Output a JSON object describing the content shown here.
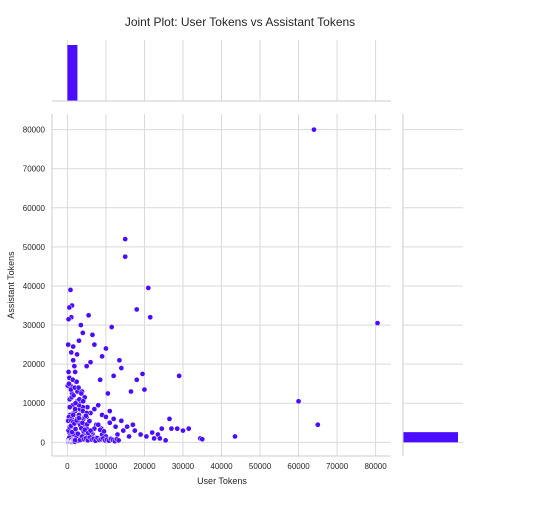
{
  "chart_data": {
    "type": "scatter",
    "title": "Joint Plot: User Tokens vs Assistant Tokens",
    "xlabel": "User Tokens",
    "ylabel": "Assistant Tokens",
    "xlim": [
      -4000,
      84000
    ],
    "ylim": [
      -3500,
      84000
    ],
    "x_ticks": [
      0,
      10000,
      20000,
      30000,
      40000,
      50000,
      60000,
      70000,
      80000
    ],
    "y_ticks": [
      0,
      10000,
      20000,
      30000,
      40000,
      50000,
      60000,
      70000,
      80000
    ],
    "x_tick_labels": [
      "0",
      "10000",
      "20000",
      "30000",
      "40000",
      "50000",
      "60000",
      "70000",
      "80000"
    ],
    "y_tick_labels": [
      "0",
      "10000",
      "20000",
      "30000",
      "40000",
      "50000",
      "60000",
      "70000",
      "80000"
    ],
    "grid": true,
    "point_color": "#4b0dff",
    "marginal_x": {
      "type": "histogram",
      "bin_edges": [
        0,
        2600
      ],
      "relative_height": 1.0
    },
    "marginal_y": {
      "type": "histogram",
      "bin_edges": [
        0,
        2600
      ],
      "relative_width": 1.0
    },
    "x": [
      64000,
      80500,
      15000,
      15000,
      21000,
      21500,
      18000,
      60000,
      65000,
      43500,
      29000,
      26500,
      30000,
      31500,
      34500,
      35000,
      28500,
      23500,
      24500,
      11500,
      20000,
      19500,
      18000,
      16500,
      10000,
      13500,
      14000,
      12000,
      10500,
      9000,
      8500,
      7000,
      6500,
      5500,
      6000,
      5000,
      4000,
      3500,
      3000,
      2500,
      2000,
      1500,
      1200,
      1000,
      800,
      500,
      300,
      200,
      1000,
      1500,
      1800,
      2200,
      500,
      800,
      1200,
      300,
      600,
      1400,
      2500,
      3200,
      4500,
      5200,
      3800,
      2800,
      1600,
      700,
      400,
      200,
      1100,
      2100,
      3300,
      4200,
      5800,
      7500,
      8800,
      9500,
      11000,
      12500,
      13000,
      14500,
      16000,
      17000,
      22000,
      24000,
      25500,
      27000,
      2000,
      3000,
      4000,
      5000,
      6000,
      7000,
      8000,
      9000,
      10000,
      11000,
      12000,
      14000,
      15500,
      17500,
      19000,
      20500,
      22500,
      1000,
      2000,
      3000,
      4000,
      5000,
      6000,
      7000,
      8000,
      9000,
      10000,
      500,
      1500,
      2500,
      3500,
      4500,
      5500,
      6500,
      7500,
      8500,
      9500,
      200,
      700,
      1200,
      1700,
      2200,
      2700,
      3200,
      3700,
      4200,
      4700,
      5200,
      5700,
      6200,
      6700,
      300,
      800,
      1300,
      1800,
      2300,
      2800,
      3300,
      3800,
      4300,
      4800,
      5300,
      5800,
      6300,
      6800,
      7300,
      7800,
      8300,
      8800,
      9300,
      9800,
      10300,
      10800,
      11300,
      11800,
      12300,
      12800,
      13300,
      500,
      1000,
      1500,
      2000,
      2500,
      3000,
      3500,
      4000,
      4500,
      5000,
      600,
      1100,
      1600,
      2100,
      2600,
      3100,
      3600,
      4100,
      100,
      400,
      900,
      1400,
      1900,
      2400,
      2900,
      100,
      200,
      300,
      400,
      500,
      600,
      700,
      800,
      900,
      1000,
      1100,
      1200,
      1300,
      1400,
      1500,
      1600,
      1700,
      1800,
      1900,
      2000,
      300,
      600,
      900,
      1200,
      1500,
      1800,
      2100,
      2400,
      2700,
      3000,
      3300,
      3600,
      3900,
      4200,
      4500,
      4800,
      5100,
      5400,
      5700,
      6000
    ],
    "y": [
      80000,
      30500,
      52000,
      47500,
      39500,
      32000,
      34000,
      10500,
      4500,
      1500,
      17000,
      6000,
      3000,
      3500,
      1000,
      800,
      3500,
      2000,
      3500,
      29500,
      13500,
      17500,
      16000,
      13000,
      24000,
      21000,
      19000,
      17000,
      12500,
      22000,
      16000,
      25000,
      27500,
      32500,
      20500,
      19500,
      28000,
      30000,
      26000,
      22500,
      18000,
      24500,
      35000,
      32000,
      39000,
      34500,
      31500,
      25000,
      23000,
      21000,
      19500,
      15500,
      16500,
      14500,
      12500,
      18000,
      11000,
      9500,
      10500,
      8500,
      11500,
      9000,
      13000,
      14000,
      7500,
      7000,
      6500,
      5500,
      6000,
      5000,
      4500,
      6000,
      5500,
      4500,
      3500,
      2500,
      5000,
      4000,
      2000,
      3000,
      1500,
      4500,
      2500,
      1000,
      500,
      3500,
      8000,
      7000,
      9000,
      6500,
      7500,
      8500,
      9500,
      7000,
      6500,
      8000,
      6000,
      5500,
      4000,
      3000,
      2000,
      1500,
      1000,
      4000,
      3000,
      5000,
      4500,
      3500,
      2500,
      3500,
      4500,
      2000,
      1500,
      2500,
      1500,
      2000,
      1000,
      3000,
      1800,
      2200,
      1200,
      3200,
      2800,
      600,
      1100,
      1600,
      2100,
      900,
      1300,
      1700,
      700,
      1900,
      2400,
      1400,
      800,
      2600,
      1000,
      300,
      500,
      900,
      700,
      1200,
      400,
      600,
      1500,
      800,
      1000,
      500,
      1300,
      700,
      900,
      400,
      1100,
      600,
      800,
      1000,
      500,
      700,
      400,
      900,
      600,
      300,
      800,
      500,
      1200,
      5500,
      7000,
      8500,
      6000,
      9500,
      10500,
      8000,
      6500,
      7500,
      9000,
      11500,
      12000,
      10000,
      13000,
      11000,
      12500,
      10500,
      14500,
      15000,
      13500,
      16000,
      14000,
      15500,
      14000,
      100,
      200,
      150,
      300,
      250,
      400,
      350,
      500,
      450,
      600,
      100,
      300,
      200,
      400,
      350,
      500,
      250,
      450,
      150,
      550,
      3000,
      3800,
      4200,
      2600,
      5200,
      4800,
      3400,
      5600,
      2200,
      6200,
      4400,
      3600,
      5000,
      2800,
      3200,
      6800,
      4600,
      2400,
      5400,
      3000
    ]
  }
}
